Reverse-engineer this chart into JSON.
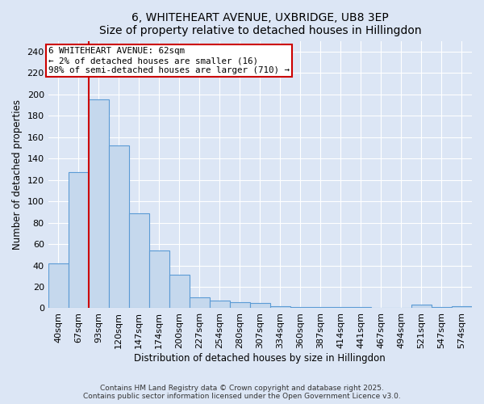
{
  "title": "6, WHITEHEART AVENUE, UXBRIDGE, UB8 3EP",
  "subtitle": "Size of property relative to detached houses in Hillingdon",
  "xlabel": "Distribution of detached houses by size in Hillingdon",
  "ylabel": "Number of detached properties",
  "categories": [
    "40sqm",
    "67sqm",
    "93sqm",
    "120sqm",
    "147sqm",
    "174sqm",
    "200sqm",
    "227sqm",
    "254sqm",
    "280sqm",
    "307sqm",
    "334sqm",
    "360sqm",
    "387sqm",
    "414sqm",
    "441sqm",
    "467sqm",
    "494sqm",
    "521sqm",
    "547sqm",
    "574sqm"
  ],
  "values": [
    42,
    127,
    195,
    152,
    89,
    54,
    31,
    10,
    7,
    6,
    5,
    2,
    1,
    1,
    1,
    1,
    0,
    0,
    3,
    1,
    2
  ],
  "bar_color": "#c5d8ed",
  "bar_edgecolor": "#5b9bd5",
  "annotation_text": "6 WHITEHEART AVENUE: 62sqm\n← 2% of detached houses are smaller (16)\n98% of semi-detached houses are larger (710) →",
  "annotation_box_color": "#ffffff",
  "annotation_box_edgecolor": "#cc0000",
  "ylim": [
    0,
    250
  ],
  "yticks": [
    0,
    20,
    40,
    60,
    80,
    100,
    120,
    140,
    160,
    180,
    200,
    220,
    240
  ],
  "bg_color": "#dce6f5",
  "plot_bg_color": "#dce6f5",
  "grid_color": "#ffffff",
  "title_fontsize": 10,
  "label_fontsize": 8.5,
  "tick_fontsize": 8,
  "annotation_fontsize": 7.8,
  "footer_text": "Contains HM Land Registry data © Crown copyright and database right 2025.\nContains public sector information licensed under the Open Government Licence v3.0.",
  "red_line_x": 1.5
}
